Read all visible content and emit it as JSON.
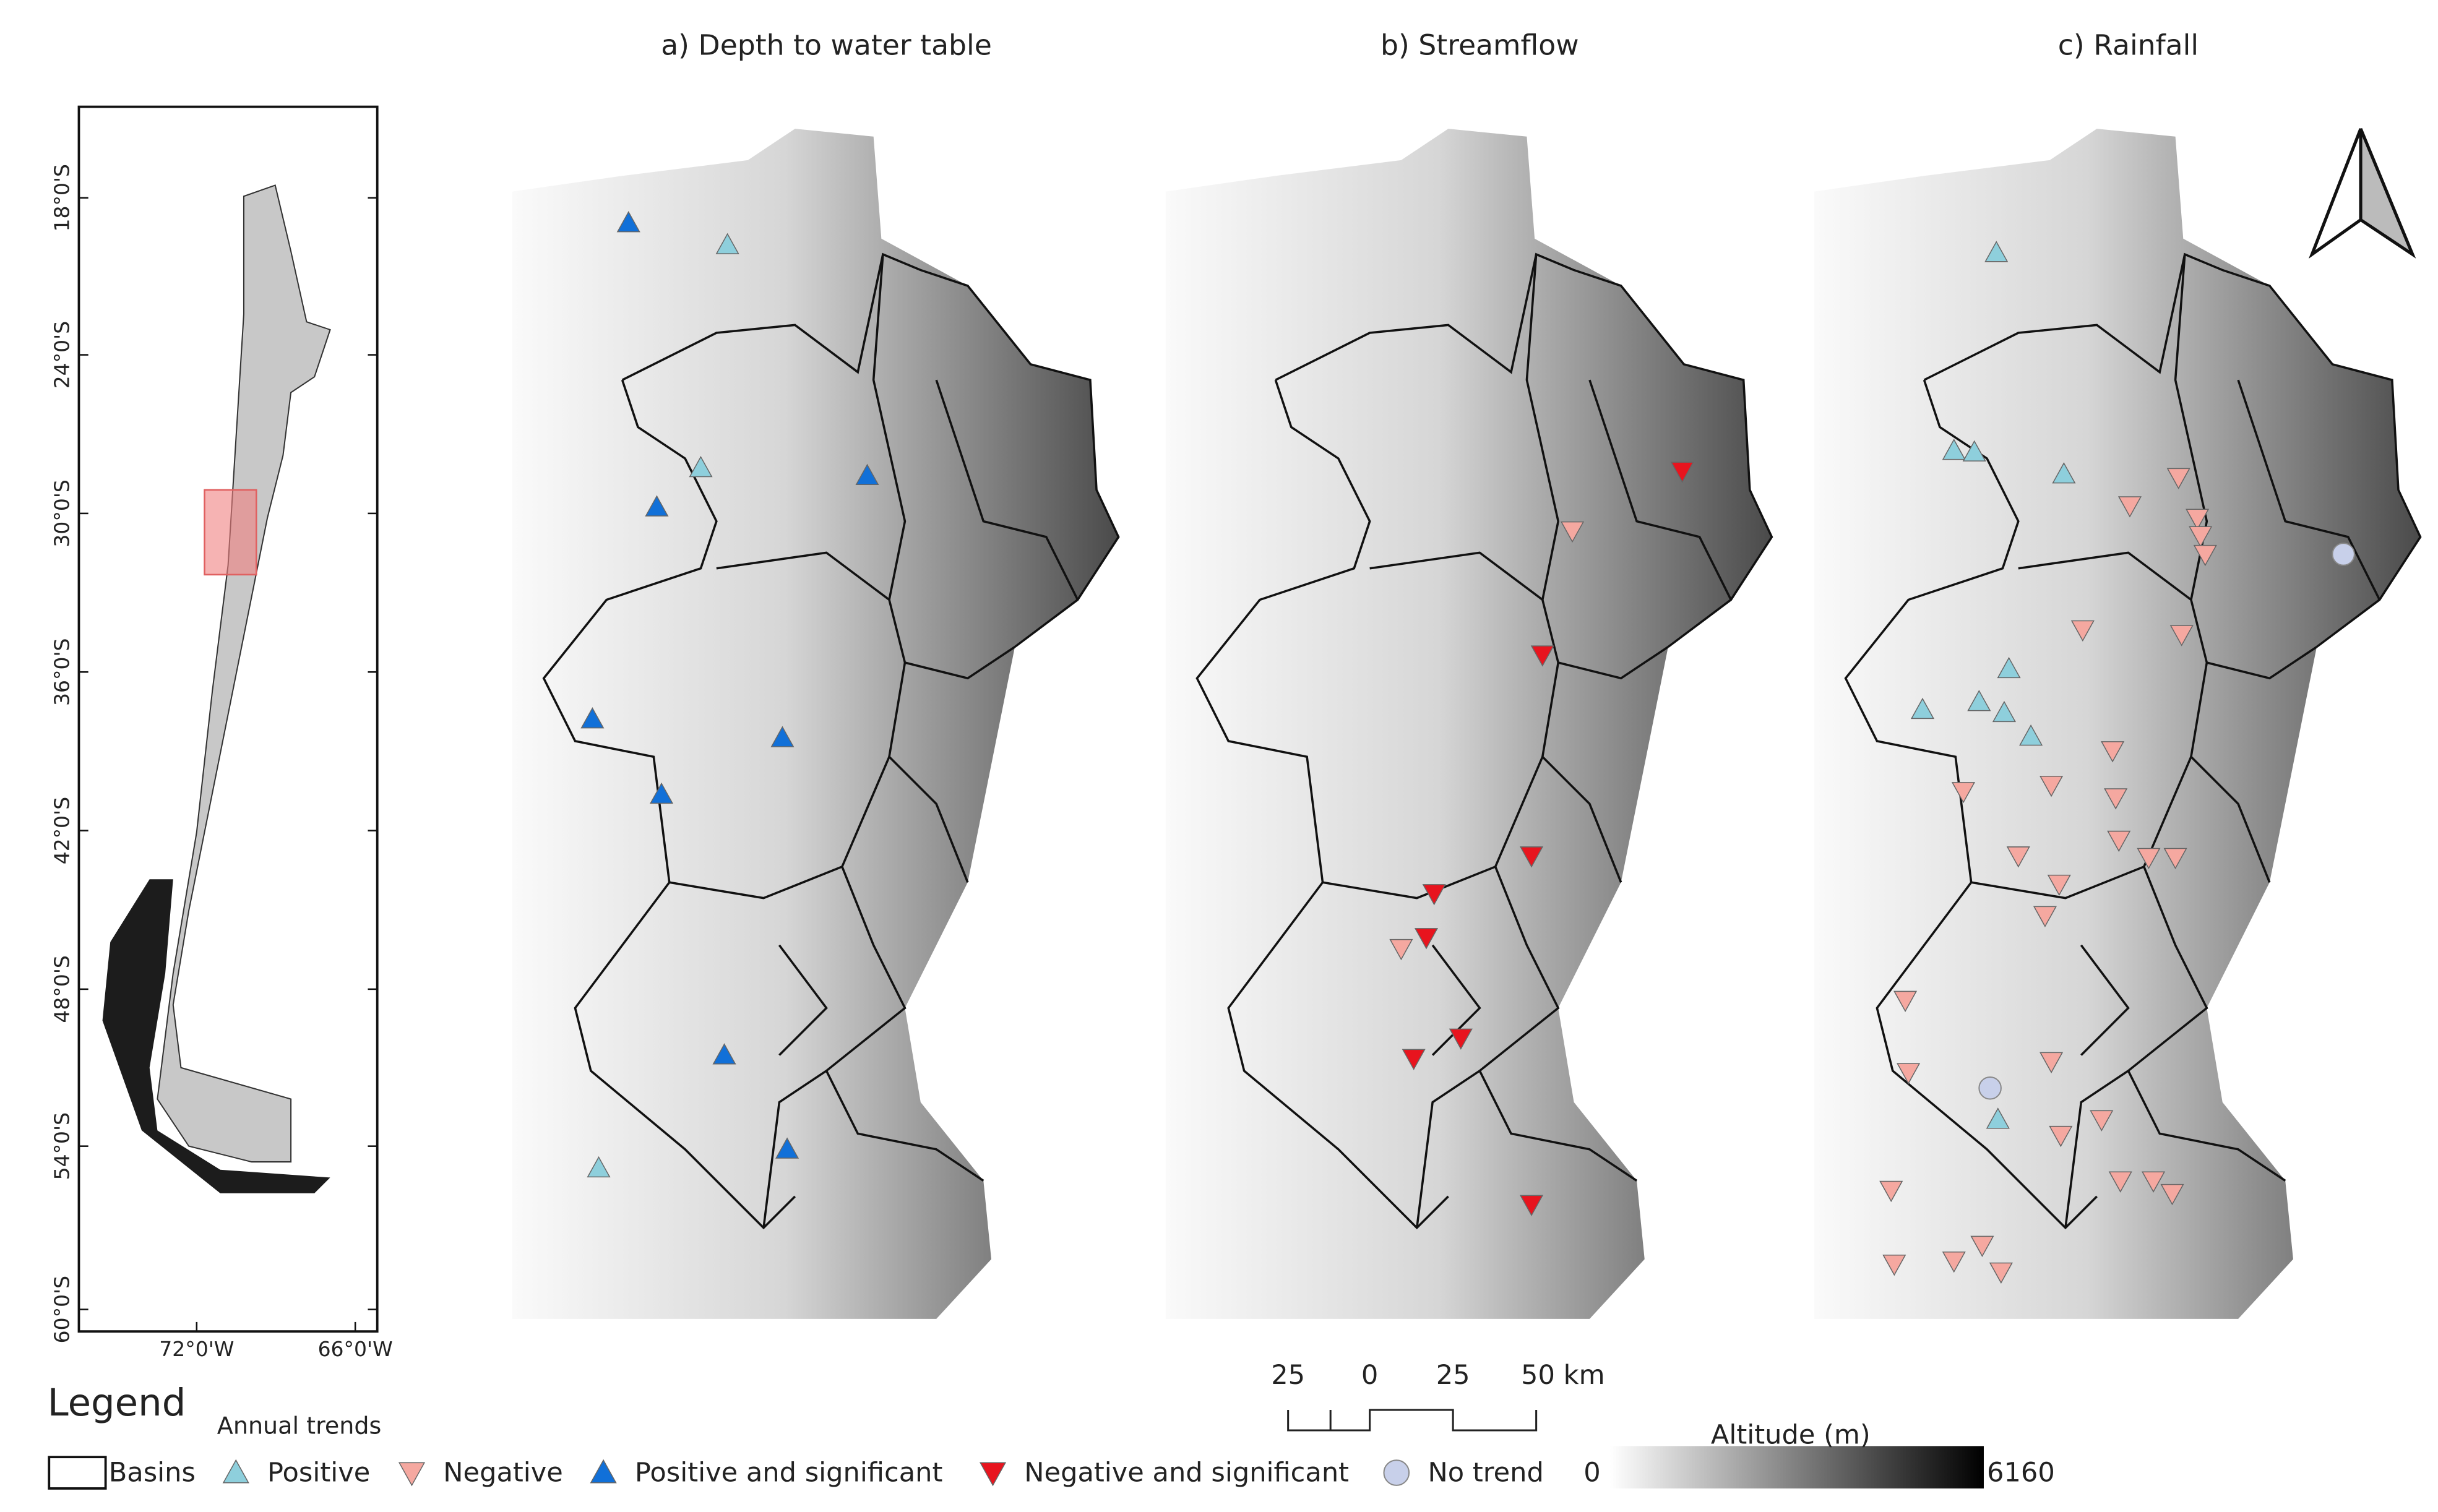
{
  "panels": [
    {
      "title": "a) Depth to water table"
    },
    {
      "title": "b) Streamflow"
    },
    {
      "title": "c) Rainfall"
    }
  ],
  "inset_map": {
    "lat_labels": [
      "18°0'S",
      "24°0'S",
      "30°0'S",
      "36°0'S",
      "42°0'S",
      "48°0'S",
      "54°0'S",
      "60°0'S"
    ],
    "lon_labels": [
      "72°0'W",
      "66°0'W"
    ]
  },
  "legend": {
    "title": "Legend",
    "subtitle": "Annual trends",
    "items": [
      "Basins",
      "Positive",
      "Negative",
      "Positive and significant",
      "Negative and significant",
      "No trend"
    ]
  },
  "scale_bar": {
    "labels": [
      "25",
      "0",
      "25",
      "50 km"
    ]
  },
  "altitude": {
    "title": "Altitude (m)",
    "min": 0,
    "max": 6160
  }
}
